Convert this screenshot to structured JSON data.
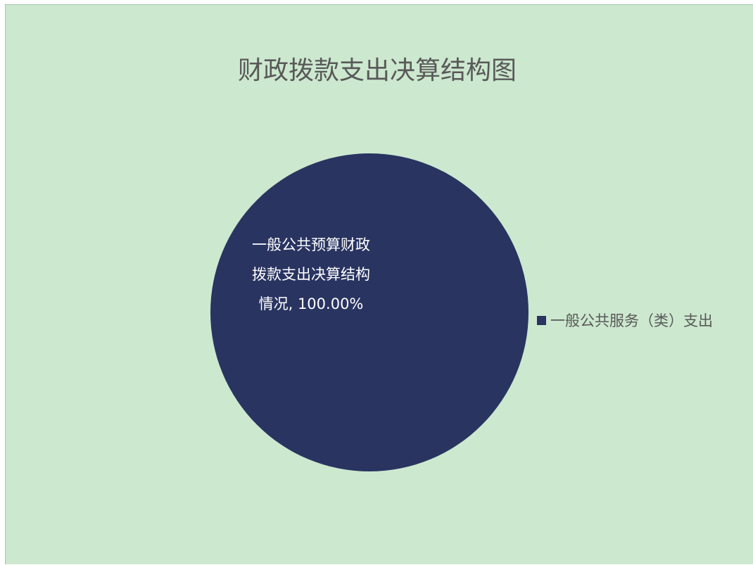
{
  "colors": {
    "background": "#cce8cf",
    "slice": "#293461",
    "title": "#595959",
    "label": "#ffffff"
  },
  "chart_data": {
    "type": "pie",
    "title": "财政拨款支出决算结构图",
    "legend_position": "right",
    "slices": [
      {
        "name": "一般公共服务（类）支出",
        "value": 100.0,
        "percent_label": "100.00%",
        "label_lines": [
          "一般公共预算财政",
          "拨款支出决算结构",
          "情况, 100.00%"
        ]
      }
    ]
  }
}
